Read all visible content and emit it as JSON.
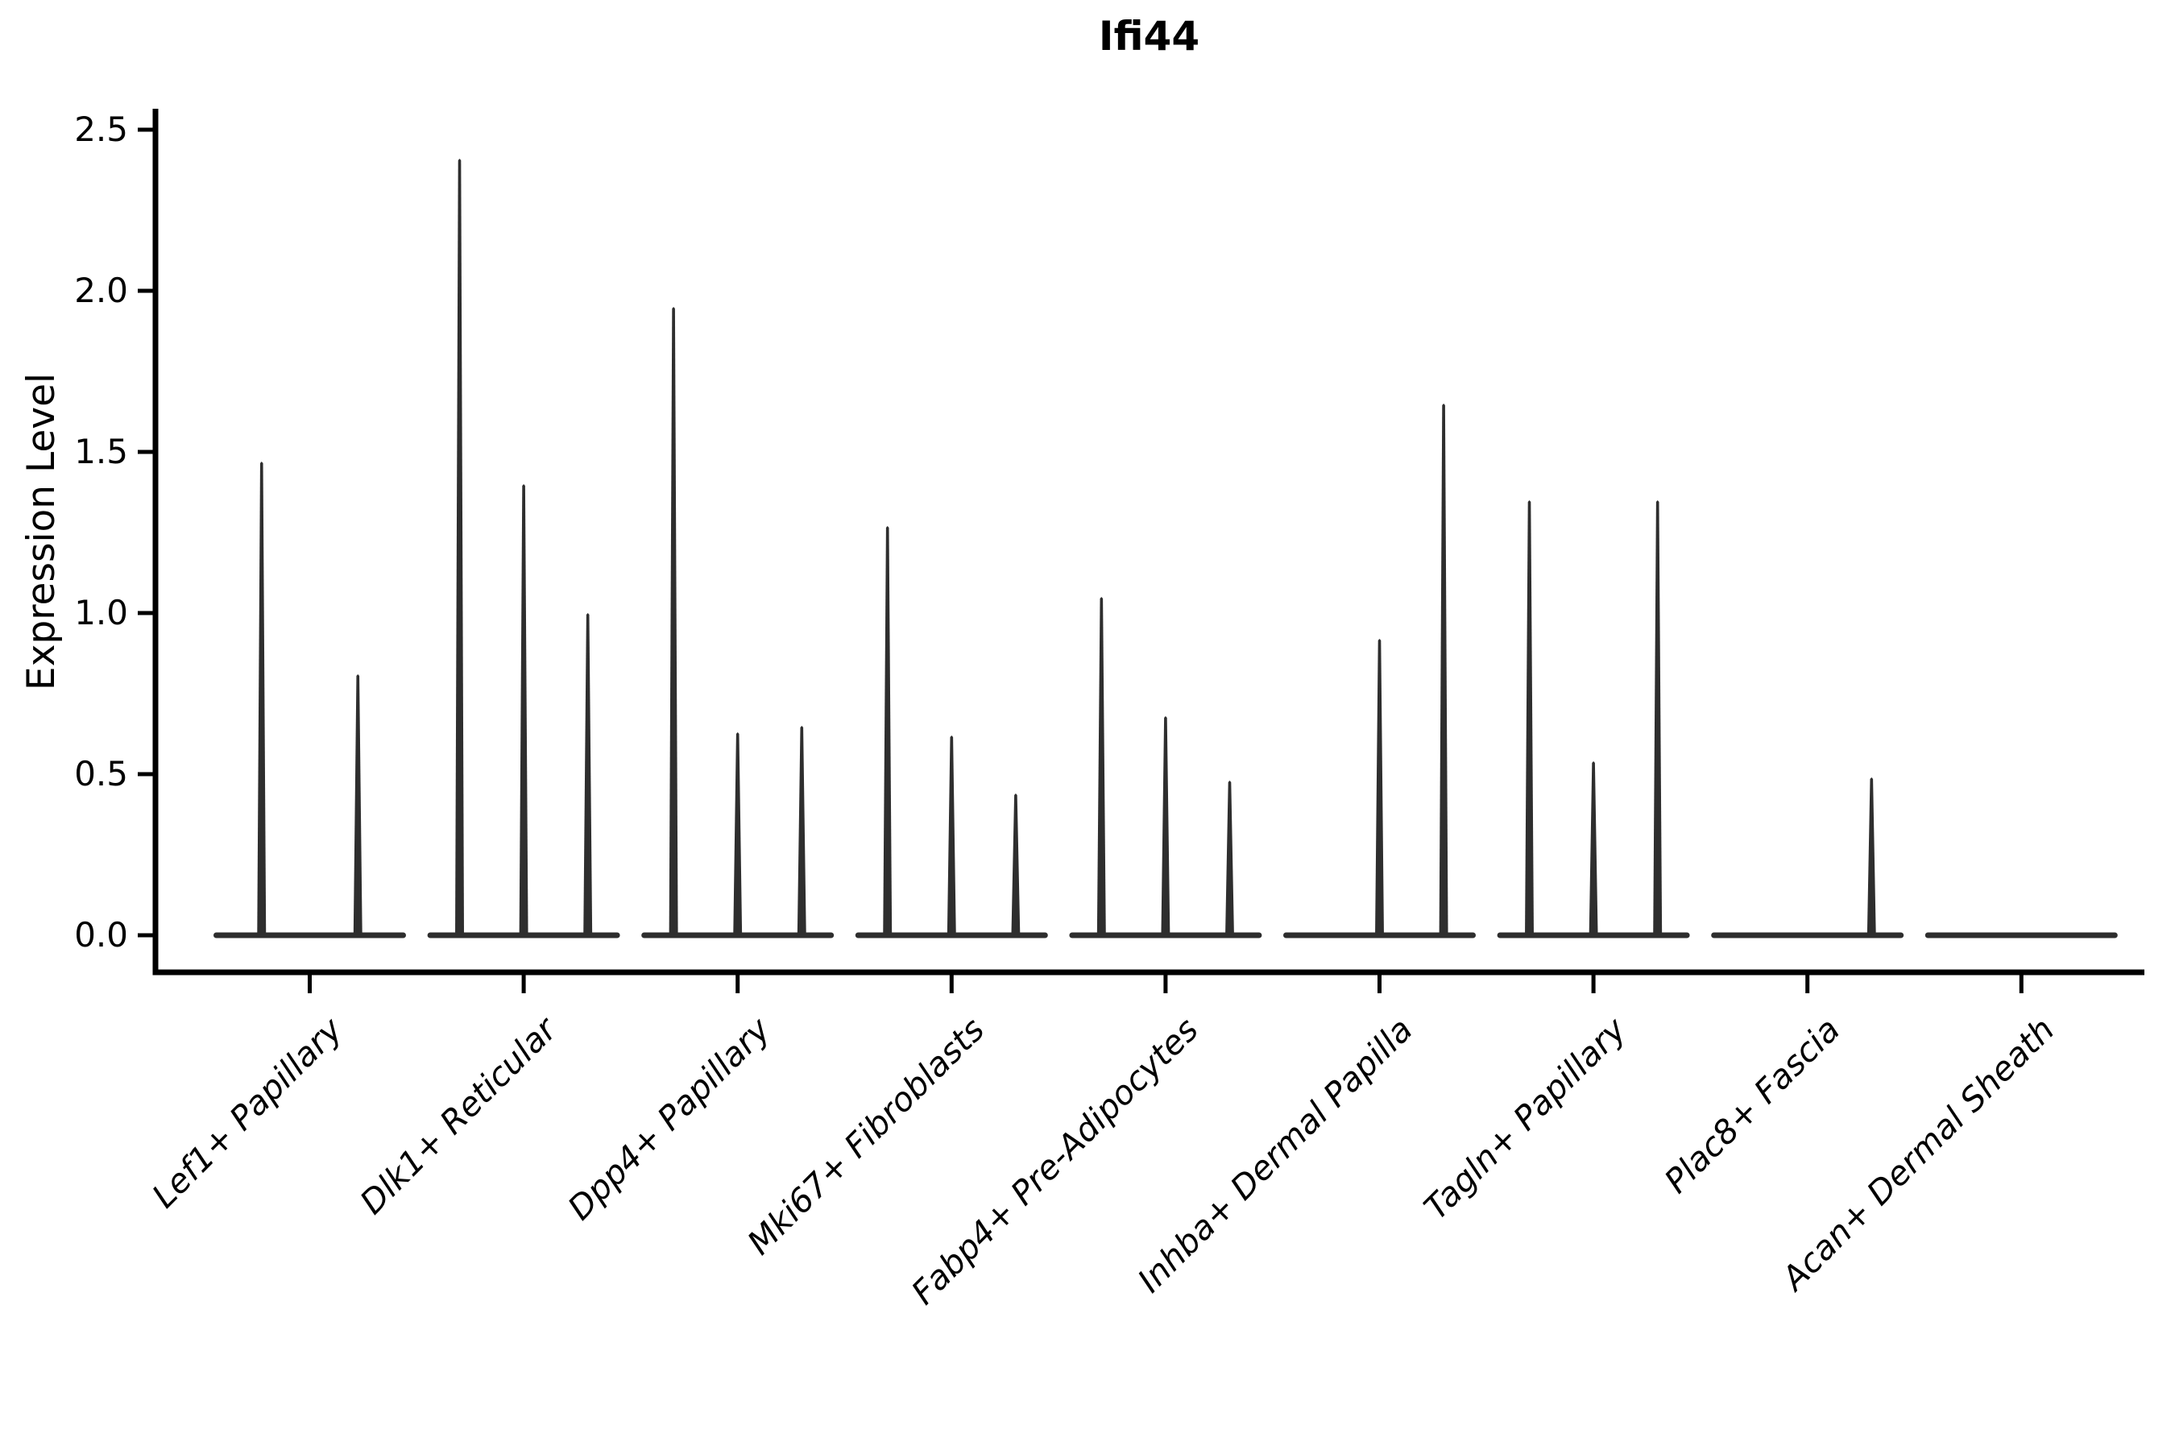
{
  "chart_data": {
    "type": "violin",
    "title": "Ifi44",
    "ylabel": "Expression Level",
    "xlabel": "",
    "legend": "none",
    "grid": false,
    "background_color": "#ffffff",
    "violin_color": "#2e2e2e",
    "axis_color": "#000000",
    "ylim": [
      -0.115,
      2.56
    ],
    "yticks": [
      "0.0",
      "0.5",
      "1.0",
      "1.5",
      "2.0",
      "2.5"
    ],
    "ytick_values": [
      0.0,
      0.5,
      1.0,
      1.5,
      2.0,
      2.5
    ],
    "categories": [
      {
        "label": "Lef1+ Papillary",
        "violins": [
          {
            "pos": 0.25,
            "max": 1.47
          },
          {
            "pos": 0.75,
            "max": 0.81
          }
        ]
      },
      {
        "label": "Dlk1+ Reticular",
        "violins": [
          {
            "pos": 0.167,
            "max": 2.41
          },
          {
            "pos": 0.5,
            "max": 1.4
          },
          {
            "pos": 0.833,
            "max": 1.0
          }
        ]
      },
      {
        "label": "Dpp4+ Papillary",
        "violins": [
          {
            "pos": 0.167,
            "max": 1.95
          },
          {
            "pos": 0.5,
            "max": 0.63
          },
          {
            "pos": 0.833,
            "max": 0.65
          }
        ]
      },
      {
        "label": "Mki67+ Fibroblasts",
        "violins": [
          {
            "pos": 0.167,
            "max": 1.27
          },
          {
            "pos": 0.5,
            "max": 0.62
          },
          {
            "pos": 0.833,
            "max": 0.44
          }
        ]
      },
      {
        "label": "Fabp4+ Pre-Adipocytes",
        "violins": [
          {
            "pos": 0.167,
            "max": 1.05
          },
          {
            "pos": 0.5,
            "max": 0.68
          },
          {
            "pos": 0.833,
            "max": 0.48
          }
        ]
      },
      {
        "label": "Inhba+ Dermal Papilla",
        "violins": [
          {
            "pos": 0.5,
            "max": 0.92
          },
          {
            "pos": 0.833,
            "max": 1.65
          }
        ]
      },
      {
        "label": "Tagln+ Papillary",
        "violins": [
          {
            "pos": 0.167,
            "max": 1.35
          },
          {
            "pos": 0.5,
            "max": 0.54
          },
          {
            "pos": 0.833,
            "max": 1.35
          }
        ]
      },
      {
        "label": "Plac8+ Fascia",
        "violins": [
          {
            "pos": 0.833,
            "max": 0.49
          }
        ]
      },
      {
        "label": "Acan+ Dermal Sheath",
        "violins": []
      }
    ]
  }
}
